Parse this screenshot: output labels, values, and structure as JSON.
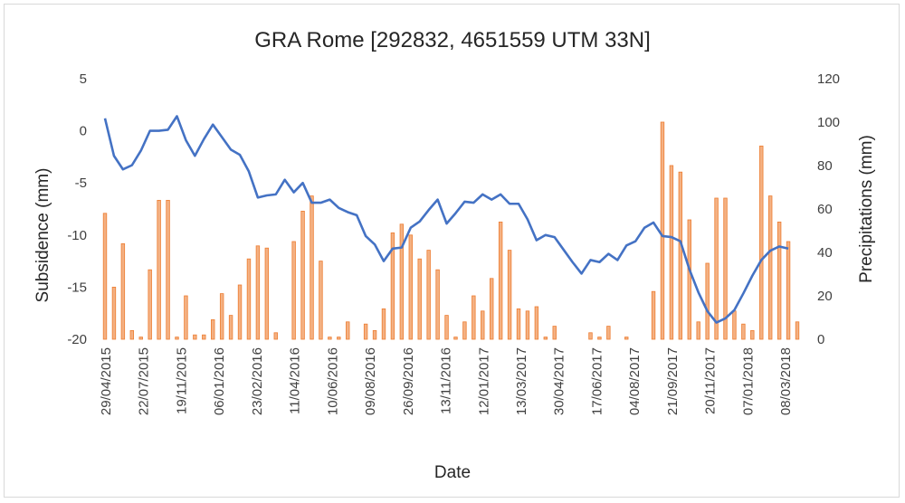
{
  "chart_data": {
    "type": "bar+line",
    "title": "GRA Rome  [292832, 4651559 UTM 33N]",
    "xlabel": "Date",
    "ylabel_left": "Subsidence  (mm)",
    "ylabel_right": "Precipitations (mm)",
    "ylim_left": [
      -20,
      5
    ],
    "ylim_right": [
      0,
      120
    ],
    "yticks_left": [
      "5",
      "0",
      "-5",
      "-10",
      "-15",
      "-20"
    ],
    "yticks_right": [
      "120",
      "100",
      "80",
      "60",
      "40",
      "20",
      "0"
    ],
    "xtick_labels": [
      "29/04/2015",
      "22/07/2015",
      "19/11/2015",
      "06/01/2016",
      "23/02/2016",
      "11/04/2016",
      "10/06/2016",
      "09/08/2016",
      "26/09/2016",
      "13/11/2016",
      "12/01/2017",
      "13/03/2017",
      "30/04/2017",
      "17/06/2017",
      "04/08/2017",
      "21/09/2017",
      "20/11/2017",
      "07/01/2018",
      "08/03/2018"
    ],
    "gridlines": false,
    "legend": "none",
    "colors": {
      "line": "#4472c4",
      "bar_fill": "#f4b183",
      "bar_edge": "#ed7d31"
    },
    "series": [
      {
        "kind": "line",
        "axis": "left",
        "values": [
          1.2,
          -2.4,
          -3.7,
          -3.3,
          -1.9,
          0.0,
          0.0,
          0.1,
          1.4,
          -0.9,
          -2.4,
          -0.8,
          0.6,
          -0.6,
          -1.8,
          -2.3,
          -3.9,
          -6.4,
          -6.2,
          -6.1,
          -4.7,
          -5.9,
          -5.0,
          -6.9,
          -6.9,
          -6.6,
          -7.4,
          -7.8,
          -8.1,
          -10.1,
          -10.9,
          -12.5,
          -11.3,
          -11.2,
          -9.3,
          -8.7,
          -7.6,
          -6.6,
          -8.9,
          -7.9,
          -6.8,
          -6.9,
          -6.1,
          -6.6,
          -6.1,
          -7.0,
          -7.0,
          -8.5,
          -10.5,
          -10.0,
          -10.2,
          -11.4,
          -12.6,
          -13.7,
          -12.4,
          -12.6,
          -11.8,
          -12.4,
          -11.0,
          -10.6,
          -9.3,
          -8.8,
          -10.1,
          -10.2,
          -10.6,
          -13.3,
          -15.5,
          -17.3,
          -18.4,
          -18.0,
          -17.2,
          -15.6,
          -13.9,
          -12.4,
          -11.5,
          -11.1,
          -11.3
        ]
      },
      {
        "kind": "bar",
        "axis": "right",
        "values": [
          58,
          24,
          44,
          4,
          1,
          32,
          64,
          64,
          1,
          20,
          2,
          2,
          9,
          21,
          11,
          25,
          37,
          43,
          42,
          3,
          0,
          45,
          59,
          66,
          36,
          1,
          1,
          8,
          0,
          7,
          4,
          14,
          49,
          53,
          48,
          37,
          41,
          32,
          11,
          1,
          8,
          20,
          13,
          28,
          54,
          41,
          14,
          13,
          15,
          1,
          6,
          0,
          0,
          0,
          3,
          1,
          6,
          0,
          1,
          0,
          0,
          22,
          100,
          80,
          77,
          55,
          8,
          35,
          65,
          65,
          13,
          7,
          4,
          89,
          66,
          54,
          45,
          8
        ]
      }
    ]
  }
}
